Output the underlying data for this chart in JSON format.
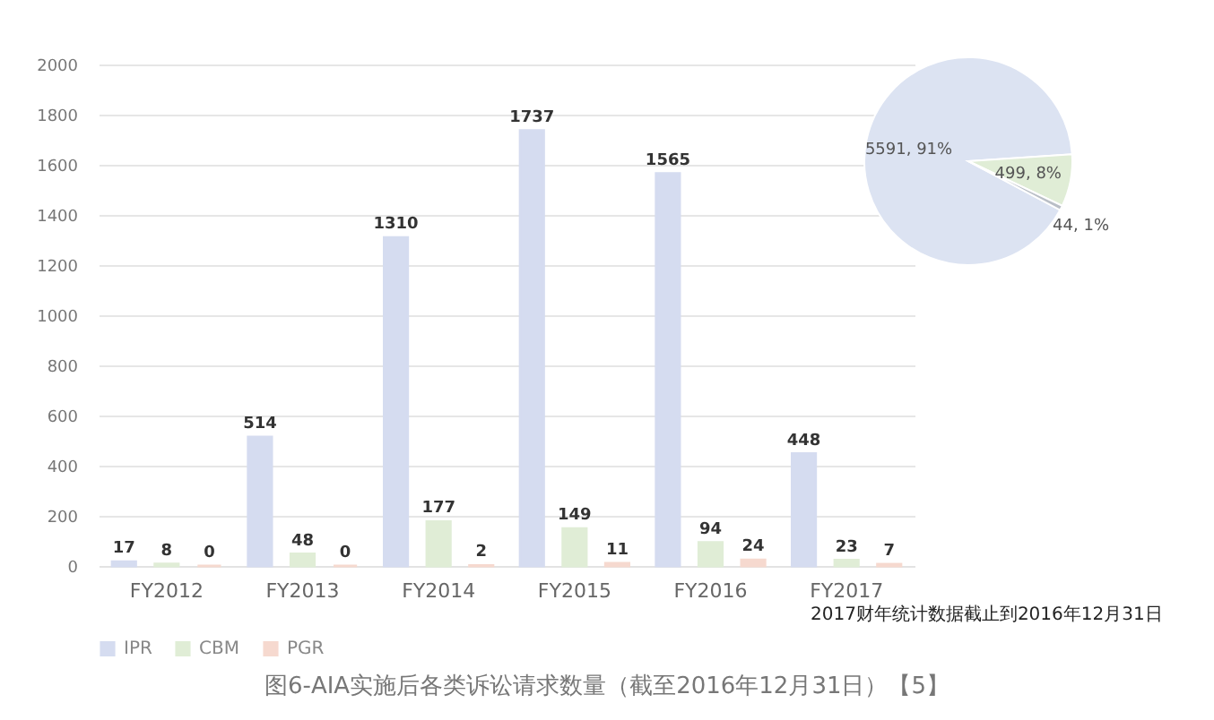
{
  "chart_data": [
    {
      "type": "bar",
      "categories": [
        "FY2012",
        "FY2013",
        "FY2014",
        "FY2015",
        "FY2016",
        "FY2017"
      ],
      "series": [
        {
          "name": "IPR",
          "color": "#d5dcf0",
          "values": [
            17,
            514,
            1310,
            1737,
            1565,
            448
          ]
        },
        {
          "name": "CBM",
          "color": "#e0edd6",
          "values": [
            8,
            48,
            177,
            149,
            94,
            23
          ]
        },
        {
          "name": "PGR",
          "color": "#f6d9cf",
          "values": [
            0,
            0,
            2,
            11,
            24,
            7
          ]
        }
      ],
      "ylim": [
        0,
        2000
      ],
      "yticks": [
        0,
        200,
        400,
        600,
        800,
        1000,
        1200,
        1400,
        1600,
        1800,
        2000
      ],
      "grid": "y",
      "legend": "bottom",
      "data_labels": true,
      "annotations": [
        "2017财年统计数据截止到2016年12月31日",
        "图6-AIA实施后各类诉讼请求数量（截至2016年12月31日）【5】"
      ]
    },
    {
      "type": "pie",
      "categories": [
        null,
        null,
        null
      ],
      "values": [
        5591,
        499,
        44
      ],
      "colors": [
        "#dce3f2",
        "#e0edd6",
        "#b9bec6"
      ],
      "value_labels": [
        "5591, 91%",
        "499, 8%",
        "44, 1%"
      ]
    }
  ]
}
